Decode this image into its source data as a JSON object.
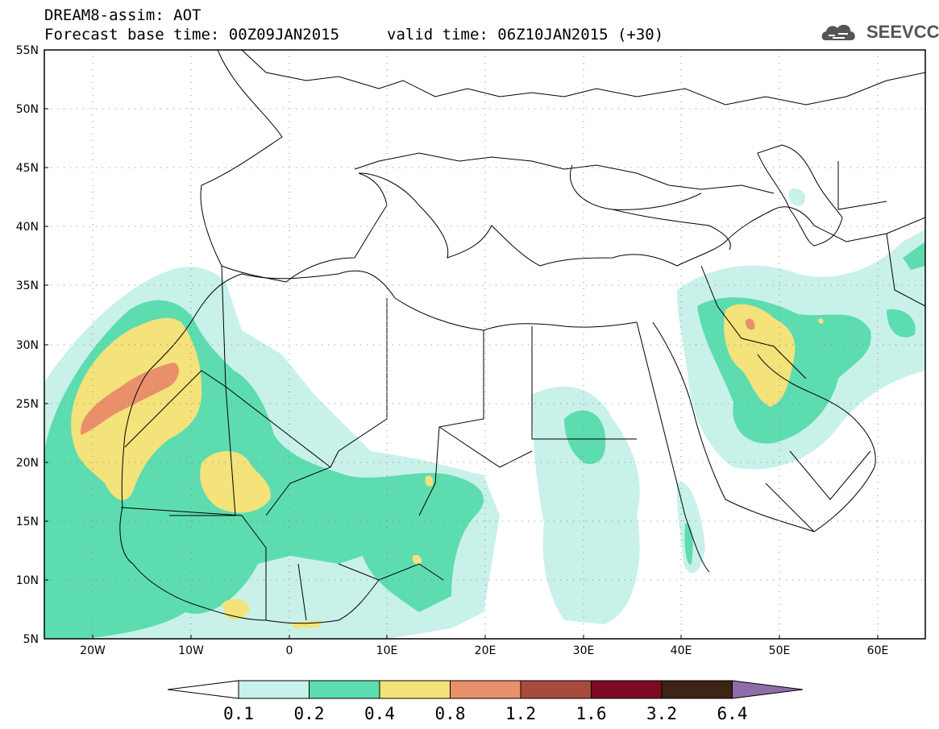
{
  "header": {
    "line1": "DREAM8-assim: AOT",
    "line2": "Forecast base time: 00Z09JAN2015",
    "valid": "valid time: 06Z10JAN2015 (+30)",
    "logo_text": "SEEVCCC"
  },
  "map": {
    "lon_range": [
      -25,
      65
    ],
    "lat_range": [
      5,
      55
    ],
    "lat_ticks": [
      "55N",
      "50N",
      "45N",
      "40N",
      "35N",
      "30N",
      "25N",
      "20N",
      "15N",
      "10N",
      "5N"
    ],
    "lon_ticks": [
      "20W",
      "10W",
      "0",
      "10E",
      "20E",
      "30E",
      "40E",
      "50E",
      "60E"
    ],
    "grid": "dotted"
  },
  "colorbar": {
    "levels": [
      "0.1",
      "0.2",
      "0.4",
      "0.8",
      "1.2",
      "1.6",
      "3.2",
      "6.4"
    ],
    "colors": [
      "#ffffff",
      "#c8f1ea",
      "#5ddcb0",
      "#f4e27a",
      "#e9906a",
      "#a84a3e",
      "#7c0b22",
      "#3d2414",
      "#8e6ea8"
    ]
  }
}
